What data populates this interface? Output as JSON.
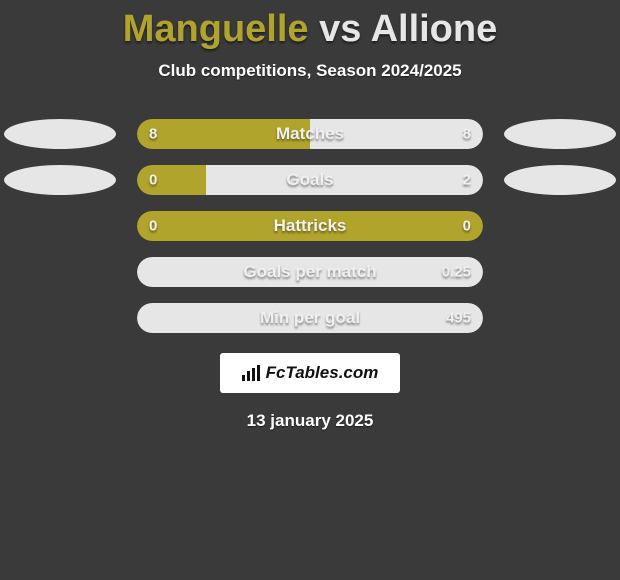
{
  "header": {
    "player1": "Manguelle",
    "vs": "vs",
    "player2": "Allione",
    "subtitle": "Club competitions, Season 2024/2025",
    "player1_color": "#b0a42c",
    "player2_color": "#e6e6e6"
  },
  "bars": {
    "track_width": 346,
    "track_height": 30,
    "radius": 15,
    "track_bg": "#3a3a3a",
    "label_fontsize": 17,
    "value_fontsize": 15
  },
  "stats": [
    {
      "label": "Matches",
      "left_text": "8",
      "right_text": "8",
      "left_pct": 50,
      "right_pct": 50,
      "left_color": "#b0a42c",
      "right_color": "#e6e6e6",
      "left_ellipse": true,
      "right_ellipse": true,
      "ellipse_left_color": "#e6e6e6",
      "ellipse_right_color": "#e6e6e6"
    },
    {
      "label": "Goals",
      "left_text": "0",
      "right_text": "2",
      "left_pct": 20,
      "right_pct": 80,
      "left_color": "#b0a42c",
      "right_color": "#e6e6e6",
      "left_ellipse": true,
      "right_ellipse": true,
      "ellipse_left_color": "#e6e6e6",
      "ellipse_right_color": "#e6e6e6"
    },
    {
      "label": "Hattricks",
      "left_text": "0",
      "right_text": "0",
      "left_pct": 100,
      "right_pct": 0,
      "left_color": "#b0a42c",
      "right_color": "#e6e6e6",
      "left_ellipse": false,
      "right_ellipse": false
    },
    {
      "label": "Goals per match",
      "left_text": "",
      "right_text": "0.25",
      "left_pct": 0,
      "right_pct": 100,
      "left_color": "#b0a42c",
      "right_color": "#e6e6e6",
      "left_ellipse": false,
      "right_ellipse": false
    },
    {
      "label": "Min per goal",
      "left_text": "",
      "right_text": "495",
      "left_pct": 0,
      "right_pct": 100,
      "left_color": "#b0a42c",
      "right_color": "#e6e6e6",
      "left_ellipse": false,
      "right_ellipse": false
    }
  ],
  "brand": {
    "text": "FcTables.com"
  },
  "footer": {
    "date": "13 january 2025"
  },
  "page": {
    "background": "#3a3a3a"
  }
}
